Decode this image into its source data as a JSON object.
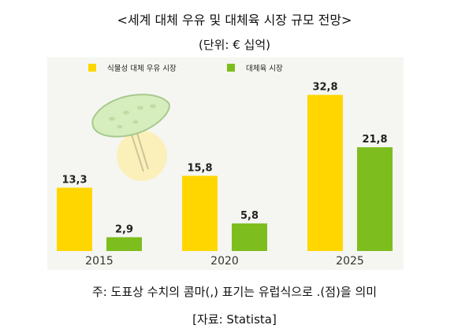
{
  "title": "<세계 대체 우유 및 대체육 시장 규모 전망>",
  "unit": "(단위: € 십억)",
  "note": "주: 도표상 수치의 콤마(,) 표기는 유럽식으로 .(점)을 의미",
  "source": "[자료: Statista]",
  "colors": {
    "milk": "#FFD600",
    "meat": "#7DBE1E",
    "background": "#F5F6F1"
  },
  "decoration": "cucumber-on-fork-icon",
  "chart_data": {
    "type": "bar",
    "categories": [
      "2015",
      "2020",
      "2025"
    ],
    "series": [
      {
        "name": "식물성 대체 우유 시장",
        "values": [
          13.3,
          15.8,
          32.8
        ],
        "labels": [
          "13,3",
          "15,8",
          "32,8"
        ]
      },
      {
        "name": "대체육 시장",
        "values": [
          2.9,
          5.8,
          21.8
        ],
        "labels": [
          "2,9",
          "5,8",
          "21,8"
        ]
      }
    ],
    "ylim": [
      0,
      35
    ],
    "legend_position": "top-left",
    "grid": false
  }
}
